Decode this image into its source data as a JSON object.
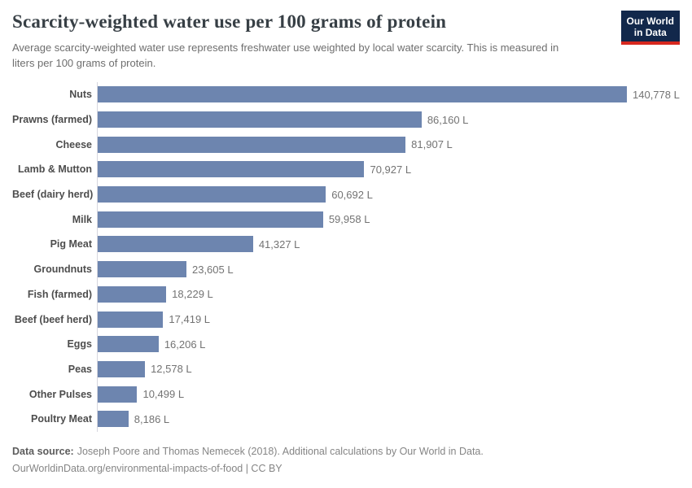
{
  "header": {
    "logo": {
      "line1": "Our World",
      "line2": "in Data"
    }
  },
  "chart_data": {
    "type": "bar",
    "orientation": "horizontal",
    "title": "Scarcity-weighted water use per 100 grams of protein",
    "subtitle": "Average scarcity-weighted water use represents freshwater use weighted by local water scarcity. This is measured in liters per 100 grams of protein.",
    "categories": [
      "Nuts",
      "Prawns (farmed)",
      "Cheese",
      "Lamb & Mutton",
      "Beef (dairy herd)",
      "Milk",
      "Pig Meat",
      "Groundnuts",
      "Fish (farmed)",
      "Beef (beef herd)",
      "Eggs",
      "Peas",
      "Other Pulses",
      "Poultry Meat"
    ],
    "values": [
      140778,
      86160,
      81907,
      70927,
      60692,
      59958,
      41327,
      23605,
      18229,
      17419,
      16206,
      12578,
      10499,
      8186
    ],
    "value_labels": [
      "140,778 L",
      "86,160 L",
      "81,907 L",
      "70,927 L",
      "60,692 L",
      "59,958 L",
      "41,327 L",
      "23,605 L",
      "18,229 L",
      "17,419 L",
      "16,206 L",
      "12,578 L",
      "10,499 L",
      "8,186 L"
    ],
    "unit": "liters per 100 grams of protein",
    "xlim": [
      0,
      140778
    ],
    "bar_color": "#6d85af",
    "grid": false,
    "legend": "none"
  },
  "footer": {
    "source_label": "Data source:",
    "source_text": "Joseph Poore and Thomas Nemecek (2018). Additional calculations by Our World in Data.",
    "link_text": "OurWorldinData.org/environmental-impacts-of-food | CC BY"
  }
}
